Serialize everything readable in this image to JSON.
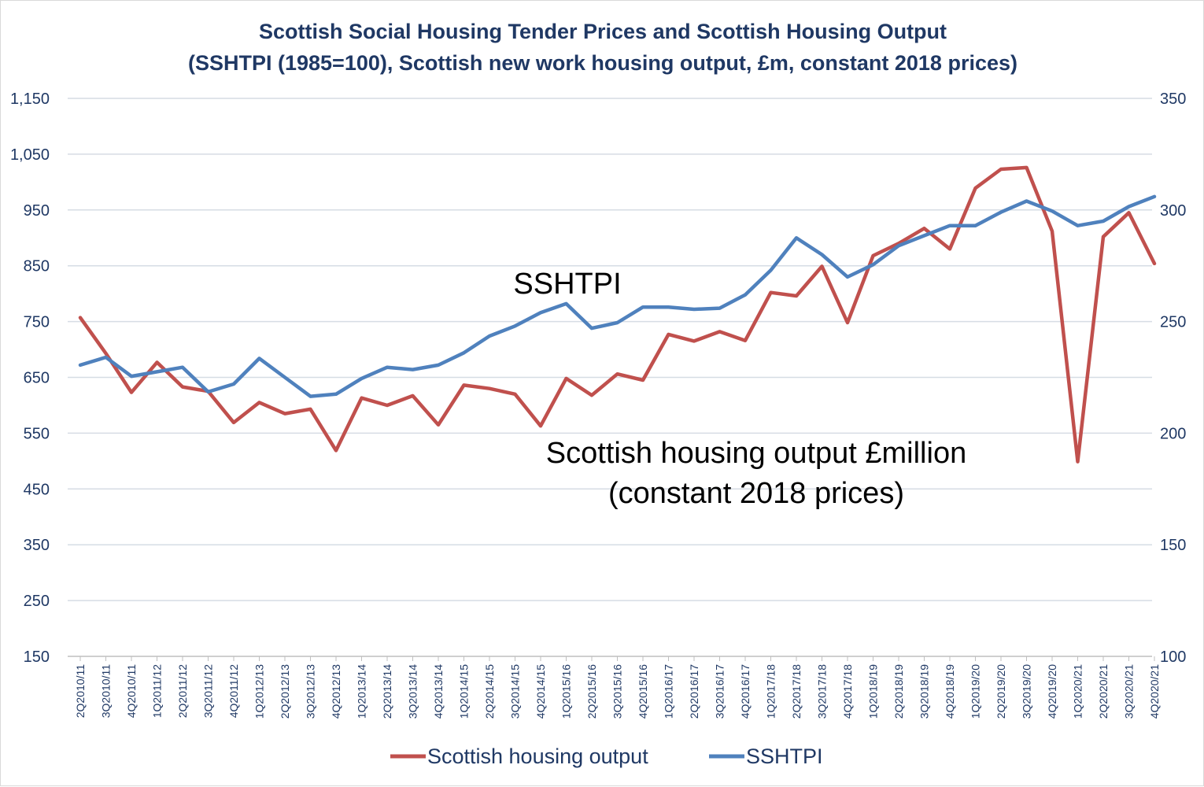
{
  "chart_data": {
    "type": "line",
    "title": "Scottish Social Housing Tender Prices and Scottish Housing Output",
    "subtitle": "(SSHTPI (1985=100), Scottish new work housing output, £m, constant 2018 prices)",
    "categories": [
      "2Q2010/11",
      "3Q2010/11",
      "4Q2010/11",
      "1Q2011/12",
      "2Q2011/12",
      "3Q2011/12",
      "4Q2011/12",
      "1Q2012/13",
      "2Q2012/13",
      "3Q2012/13",
      "4Q2012/13",
      "1Q2013/14",
      "2Q2013/14",
      "3Q2013/14",
      "4Q2013/14",
      "1Q2014/15",
      "2Q2014/15",
      "3Q2014/15",
      "4Q2014/15",
      "1Q2015/16",
      "2Q2015/16",
      "3Q2015/16",
      "4Q2015/16",
      "1Q2016/17",
      "2Q2016/17",
      "3Q2016/17",
      "4Q2016/17",
      "1Q2017/18",
      "2Q2017/18",
      "3Q2017/18",
      "4Q2017/18",
      "1Q2018/19",
      "2Q2018/19",
      "3Q2018/19",
      "4Q2018/19",
      "1Q2019/20",
      "2Q2019/20",
      "3Q2019/20",
      "4Q2019/20",
      "1Q2020/21",
      "2Q2020/21",
      "3Q2020/21",
      "4Q2020/21"
    ],
    "series": [
      {
        "name": "Scottish housing output",
        "axis": "left",
        "color": "#c0504d",
        "values": [
          757,
          693,
          623,
          677,
          633,
          625,
          569,
          605,
          585,
          593,
          519,
          613,
          600,
          617,
          565,
          636,
          630,
          620,
          563,
          648,
          618,
          656,
          645,
          727,
          715,
          732,
          716,
          802,
          796,
          849,
          748,
          868,
          890,
          917,
          880,
          989,
          1023,
          1026,
          912,
          499,
          902,
          945,
          854
        ]
      },
      {
        "name": "SSHTPI",
        "axis": "right",
        "color": "#4f81bd",
        "values": [
          230.5,
          234,
          225.5,
          227.5,
          229.5,
          218.5,
          222,
          233.5,
          225,
          216.5,
          217.5,
          224.5,
          229.5,
          228.5,
          230.5,
          236,
          243.5,
          248,
          254,
          258,
          247,
          249.5,
          256.5,
          256.5,
          255.5,
          256,
          262,
          273,
          287.5,
          280,
          270,
          275.5,
          284,
          288.5,
          293,
          293,
          299,
          304,
          299.5,
          293,
          295,
          301.5,
          306
        ]
      }
    ],
    "y_left": {
      "min": 150,
      "max": 1150,
      "ticks": [
        "150",
        "250",
        "350",
        "450",
        "550",
        "650",
        "750",
        "850",
        "950",
        "1,050",
        "1,150"
      ]
    },
    "y_right": {
      "min": 100,
      "max": 350,
      "ticks": [
        "100",
        "150",
        "200",
        "250",
        "300",
        "350"
      ]
    },
    "annotations": {
      "sshtpi": "SSHTPI",
      "output_line1": "Scottish housing output £million",
      "output_line2": "(constant 2018 prices)"
    },
    "legend": {
      "position": "bottom",
      "items": [
        "Scottish housing output",
        "SSHTPI"
      ]
    },
    "grid": true
  }
}
